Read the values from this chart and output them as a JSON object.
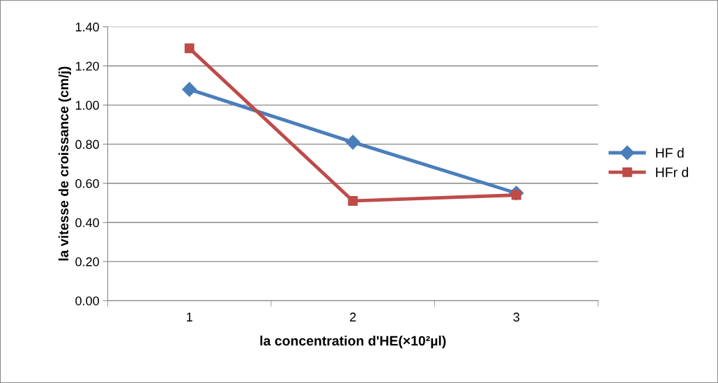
{
  "chart_data": {
    "type": "line",
    "xlabel": "la concentration d'HE(×10²µl)",
    "ylabel": "la vitesse de croissance (cm/j)",
    "categories": [
      "1",
      "2",
      "3"
    ],
    "series": [
      {
        "name": "HF d",
        "color": "#4a7ebb",
        "marker": "diamond",
        "values": [
          1.08,
          0.81,
          0.55
        ]
      },
      {
        "name": "HFr d",
        "color": "#be4b48",
        "marker": "square",
        "values": [
          1.29,
          0.51,
          0.54
        ]
      }
    ],
    "ylim": [
      0,
      1.4
    ],
    "yticks": [
      {
        "value": 0,
        "label": "0.00"
      },
      {
        "value": 0.2,
        "label": "0.20"
      },
      {
        "value": 0.4,
        "label": "0.40"
      },
      {
        "value": 0.6,
        "label": "0.60"
      },
      {
        "value": 0.8,
        "label": "0.80"
      },
      {
        "value": 1.0,
        "label": "1.00"
      },
      {
        "value": 1.2,
        "label": "1.20"
      },
      {
        "value": 1.4,
        "label": "1.40"
      }
    ],
    "grid": "y",
    "legend": "right",
    "line_style": "solid"
  }
}
